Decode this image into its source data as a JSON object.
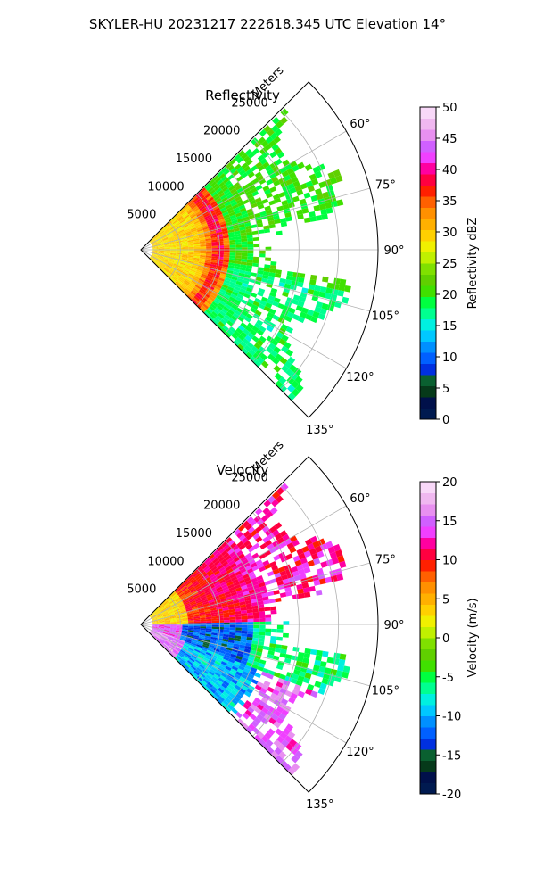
{
  "figure_title": "SKYLER-HU  20231217  222618.345 UTC Elevation 14°",
  "chart_data": [
    {
      "type": "heatmap",
      "projection": "polar-sector",
      "title": "Reflectivity",
      "radial_label": "Meters",
      "radial_ticks": [
        5000,
        10000,
        15000,
        20000,
        25000
      ],
      "radial_max": 30000,
      "angle_ticks": [
        "60°",
        "75°",
        "90°",
        "105°",
        "120°",
        "135°"
      ],
      "angle_tick_values": [
        60,
        75,
        90,
        105,
        120,
        135
      ],
      "angle_range": [
        45,
        135
      ],
      "grid": true,
      "colorbar": {
        "label": "Reflectivity dBZ",
        "ticks": [
          "0",
          "5",
          "10",
          "15",
          "20",
          "25",
          "30",
          "35",
          "40",
          "45",
          "50"
        ],
        "range": [
          0,
          50
        ]
      },
      "palette": [
        "#001a50",
        "#00104a",
        "#063a1a",
        "#0a6030",
        "#0030e0",
        "#0060ff",
        "#0090ff",
        "#00c8ff",
        "#00f0e0",
        "#00ff90",
        "#00ff40",
        "#40e000",
        "#60d000",
        "#80e000",
        "#c0f000",
        "#f0f000",
        "#ffd000",
        "#ffb000",
        "#ff9000",
        "#ff6000",
        "#ff2000",
        "#ff0040",
        "#ff00a0",
        "#f040ff",
        "#d060ff",
        "#e890f0",
        "#f0b8f0",
        "#f8d8f8"
      ]
    },
    {
      "type": "heatmap",
      "projection": "polar-sector",
      "title": "Velocity",
      "radial_label": "Meters",
      "radial_ticks": [
        5000,
        10000,
        15000,
        20000,
        25000
      ],
      "radial_max": 30000,
      "angle_ticks": [
        "60°",
        "75°",
        "90°",
        "105°",
        "120°",
        "135°"
      ],
      "angle_tick_values": [
        60,
        75,
        90,
        105,
        120,
        135
      ],
      "angle_range": [
        45,
        135
      ],
      "grid": true,
      "colorbar": {
        "label": "Velocity (m/s)",
        "ticks": [
          "-20",
          "-15",
          "-10",
          "-5",
          "0",
          "5",
          "10",
          "15",
          "20"
        ],
        "range": [
          -20,
          20
        ]
      },
      "palette": [
        "#001a50",
        "#00104a",
        "#063a1a",
        "#0a6030",
        "#0030e0",
        "#0060ff",
        "#0090ff",
        "#00c8ff",
        "#00f0e0",
        "#00ff90",
        "#00ff40",
        "#40e000",
        "#60d000",
        "#80e000",
        "#c0f000",
        "#f0f000",
        "#ffd000",
        "#ffb000",
        "#ff9000",
        "#ff6000",
        "#ff2000",
        "#ff0040",
        "#ff00a0",
        "#f040ff",
        "#d060ff",
        "#e890f0",
        "#f0b8f0",
        "#f8d8f8"
      ]
    }
  ]
}
